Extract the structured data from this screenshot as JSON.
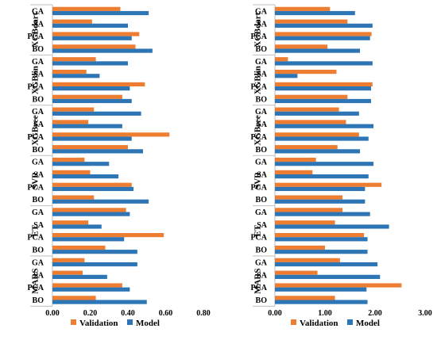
{
  "legend": {
    "validation_label": "Validation",
    "model_label": "Model"
  },
  "chart_data": [
    {
      "type": "bar",
      "orientation": "horizontal",
      "groups": [
        "XGBdart",
        "XGBlin",
        "XGBree",
        "SVR",
        "ET",
        "MARS"
      ],
      "categories": [
        "GA",
        "SA",
        "PCA",
        "BO"
      ],
      "series": [
        {
          "name": "Validation",
          "color": "#ED7D31",
          "values": [
            [
              0.36,
              0.21,
              0.46,
              0.44
            ],
            [
              0.23,
              0.18,
              0.49,
              0.37
            ],
            [
              0.22,
              0.19,
              0.62,
              0.4
            ],
            [
              0.17,
              0.2,
              0.42,
              0.22
            ],
            [
              0.39,
              0.19,
              0.59,
              0.28
            ],
            [
              0.17,
              0.16,
              0.37,
              0.23
            ]
          ]
        },
        {
          "name": "Model",
          "color": "#2E75B6",
          "values": [
            [
              0.51,
              0.4,
              0.42,
              0.53
            ],
            [
              0.4,
              0.25,
              0.41,
              0.42
            ],
            [
              0.47,
              0.37,
              0.42,
              0.48
            ],
            [
              0.3,
              0.35,
              0.43,
              0.51
            ],
            [
              0.41,
              0.26,
              0.38,
              0.45
            ],
            [
              0.45,
              0.29,
              0.41,
              0.5
            ]
          ]
        }
      ],
      "xlim": [
        0,
        0.8
      ],
      "xticks": [
        "0.00",
        "0.20",
        "0.40",
        "0.60",
        "0.80"
      ],
      "legend_position": "bottom"
    },
    {
      "type": "bar",
      "orientation": "horizontal",
      "groups": [
        "XGBdart",
        "XGBlin",
        "XGBree",
        "SVR",
        "ET",
        "MARS"
      ],
      "categories": [
        "GA",
        "SA",
        "PCA",
        "BO"
      ],
      "series": [
        {
          "name": "Validation",
          "color": "#ED7D31",
          "values": [
            [
              1.1,
              1.45,
              1.93,
              1.05
            ],
            [
              0.26,
              1.23,
              1.95,
              1.45
            ],
            [
              1.28,
              1.42,
              1.68,
              1.25
            ],
            [
              0.82,
              0.75,
              2.13,
              1.35
            ],
            [
              1.35,
              1.2,
              1.78,
              1.0
            ],
            [
              1.3,
              0.85,
              2.53,
              1.2
            ]
          ]
        },
        {
          "name": "Model",
          "color": "#2E75B6",
          "values": [
            [
              1.6,
              1.95,
              1.9,
              1.7
            ],
            [
              1.95,
              0.45,
              1.92,
              1.92
            ],
            [
              1.68,
              1.97,
              1.87,
              1.7
            ],
            [
              1.97,
              1.87,
              1.8,
              1.8
            ],
            [
              1.9,
              2.28,
              1.85,
              1.85
            ],
            [
              2.05,
              2.1,
              1.83,
              1.85
            ]
          ]
        }
      ],
      "xlim": [
        0,
        3.0
      ],
      "xticks": [
        "0.00",
        "1.00",
        "2.00",
        "3.00"
      ],
      "legend_position": "bottom"
    }
  ]
}
